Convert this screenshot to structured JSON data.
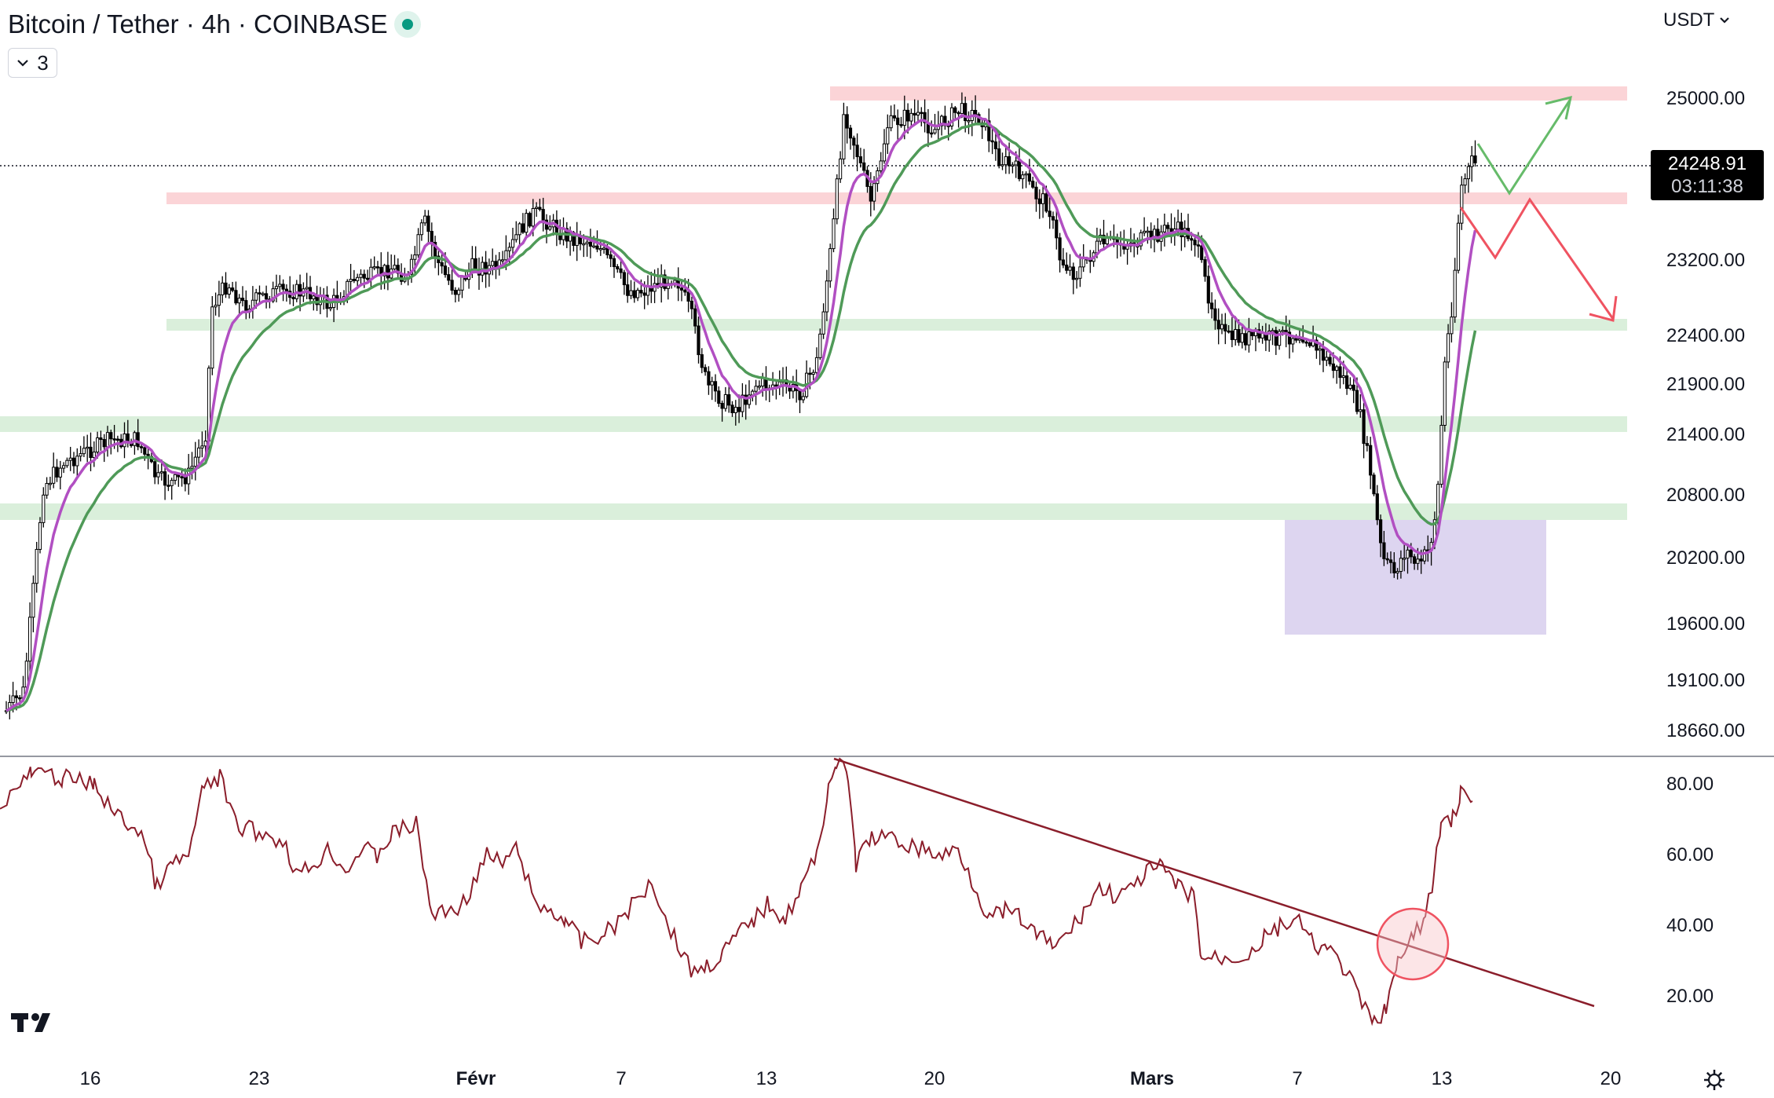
{
  "header": {
    "title": "Bitcoin / Tether · 4h · COINBASE",
    "indicator_count": "3",
    "currency": "USDT"
  },
  "price_tag": {
    "price": "24248.91",
    "countdown": "03:11:38"
  },
  "price_axis": [
    "25000.00",
    "23200.00",
    "22400.00",
    "21900.00",
    "21400.00",
    "20800.00",
    "20200.00",
    "19600.00",
    "19100.00",
    "18660.00"
  ],
  "rsi_axis": [
    "80.00",
    "60.00",
    "40.00",
    "20.00"
  ],
  "time_axis": [
    {
      "label": "16",
      "bold": false
    },
    {
      "label": "23",
      "bold": false
    },
    {
      "label": "Févr",
      "bold": true
    },
    {
      "label": "7",
      "bold": false
    },
    {
      "label": "13",
      "bold": false
    },
    {
      "label": "20",
      "bold": false
    },
    {
      "label": "Mars",
      "bold": true
    },
    {
      "label": "7",
      "bold": false
    },
    {
      "label": "13",
      "bold": false
    },
    {
      "label": "20",
      "bold": false
    }
  ],
  "colors": {
    "resistance_zone": "#f9c5c9",
    "support_zone": "#d3ecd5",
    "demand_box": "#d9d0ee",
    "ema_fast": "#b14fc2",
    "ema_slow": "#4f9a58",
    "rsi_line": "#8b1e2b",
    "trendline": "#8b1e2b",
    "bull_arrow": "#66bb6a",
    "bear_arrow": "#ef5361",
    "candle": "#000000",
    "current_price_line": "#131722"
  },
  "icons": [
    "tradingview-logo-icon",
    "chevron-down-icon",
    "settings-gear-icon"
  ]
}
